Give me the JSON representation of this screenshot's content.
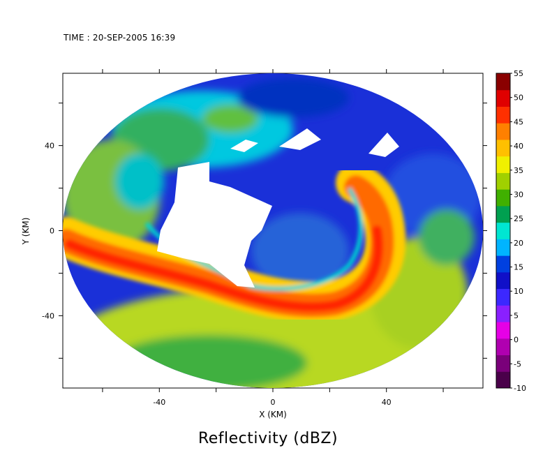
{
  "header": {
    "time_label": "TIME : 20-SEP-2005 16:39"
  },
  "title": "Reflectivity (dBZ)",
  "chart_data": {
    "type": "heatmap",
    "xlabel": "X (KM)",
    "ylabel": "Y (KM)",
    "xlim": [
      -74,
      74
    ],
    "ylim": [
      -74,
      74
    ],
    "xticks": [
      -40,
      0,
      40
    ],
    "yticks": [
      -40,
      0,
      40
    ],
    "grid": false,
    "radar_range_km": 74,
    "colorbar": {
      "label": "dBZ",
      "min": -10,
      "max": 55,
      "ticks": [
        55,
        50,
        45,
        40,
        35,
        30,
        25,
        20,
        15,
        10,
        5,
        0,
        -5,
        -10
      ],
      "colors": [
        "#4a004a",
        "#7a007a",
        "#b000b0",
        "#e600e6",
        "#8a20ff",
        "#3c28ff",
        "#1010c8",
        "#0040e0",
        "#00b4ff",
        "#00e6d2",
        "#00a050",
        "#40b000",
        "#a0d000",
        "#f0f000",
        "#ffc000",
        "#ff8000",
        "#ff3000",
        "#e00000",
        "#8a0000"
      ]
    },
    "features": [
      {
        "name": "rainband",
        "dbz_peak": 50
      },
      {
        "name": "eye",
        "dbz": "no data"
      },
      {
        "name": "northern-stratiform",
        "dbz": 12
      }
    ]
  }
}
